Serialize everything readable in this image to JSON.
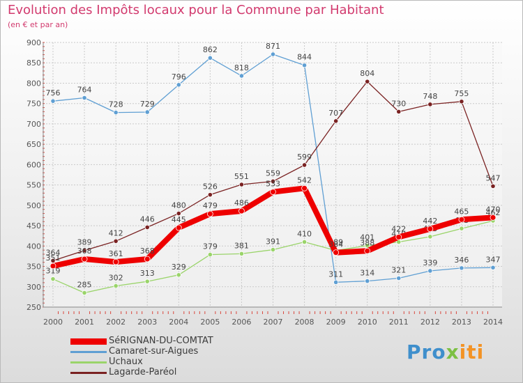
{
  "title": "Evolution des Impôts locaux pour la Commune par Habitant",
  "subtitle": "(en € et par an)",
  "brand": {
    "part1": "Pro",
    "part2": "x",
    "part3": "iti"
  },
  "chart_data": {
    "type": "line",
    "x": [
      "2000",
      "2001",
      "2002",
      "2003",
      "2004",
      "2005",
      "2006",
      "2007",
      "2008",
      "2009",
      "2010",
      "2011",
      "2012",
      "2013",
      "2014"
    ],
    "ylim": [
      250,
      900
    ],
    "yticks": [
      250,
      300,
      350,
      400,
      450,
      500,
      550,
      600,
      650,
      700,
      750,
      800,
      850,
      900
    ],
    "grid": true,
    "legend_position": "bottom-left",
    "series": [
      {
        "name": "SéRIGNAN-DU-COMTAT",
        "color": "#ee0000",
        "values": [
          351,
          368,
          361,
          368,
          445,
          479,
          486,
          533,
          542,
          384,
          388,
          422,
          442,
          465,
          470
        ]
      },
      {
        "name": "Camaret-sur-Aigues",
        "color": "#5f9fd3",
        "values": [
          756,
          764,
          728,
          729,
          796,
          862,
          818,
          871,
          844,
          311,
          314,
          321,
          339,
          346,
          347
        ]
      },
      {
        "name": "Uchaux",
        "color": "#9ad46a",
        "values": [
          319,
          285,
          302,
          313,
          329,
          379,
          381,
          391,
          410,
          389,
          401,
          410,
          423,
          443,
          462
        ]
      },
      {
        "name": "Lagarde-Paréol",
        "color": "#7a2222",
        "values": [
          364,
          389,
          412,
          446,
          480,
          526,
          551,
          559,
          599,
          707,
          804,
          730,
          748,
          755,
          547
        ]
      }
    ]
  }
}
